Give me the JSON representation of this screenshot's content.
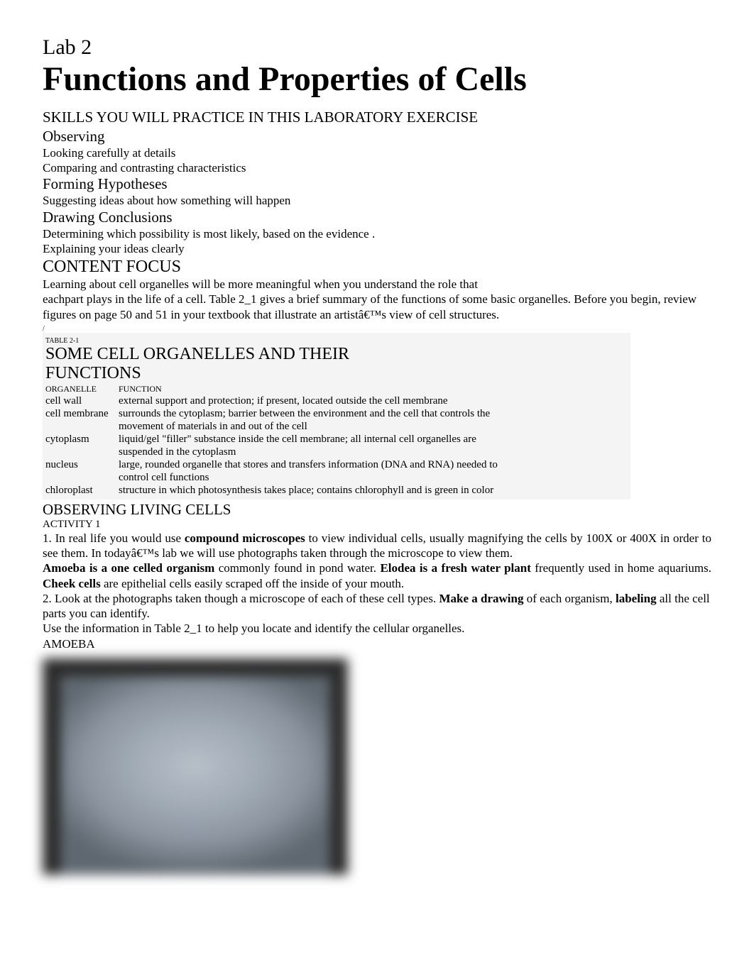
{
  "lab_num": "Lab 2",
  "main_title": "Functions and Properties of Cells",
  "skills_header": "SKILLS YOU WILL PRACTICE IN THIS LABORATORY EXERCISE",
  "skills": [
    {
      "name": "Observing",
      "lines": [
        "Looking carefully at details",
        "Comparing and contrasting characteristics"
      ]
    },
    {
      "name": "Forming Hypotheses",
      "lines": [
        "Suggesting ideas about how something will happen"
      ]
    },
    {
      "name": "Drawing Conclusions",
      "lines": [
        "Determining which possibility is most likely, based on the evidence .",
        "Explaining your ideas clearly"
      ]
    }
  ],
  "content_focus_hdr": "CONTENT FOCUS",
  "content_focus_lines": [
    "Learning about cell organelles will be more meaningful when you understand the role that",
    "eachpart plays in the life of a cell. Table 2_1 gives a brief summary of the functions of some basic organelles. Before you begin, review figures on page 50 and 51 in your textbook that illustrate an artistâ€™s view of cell structures."
  ],
  "slash": "/",
  "table": {
    "caption": "TABLE 2-1",
    "title_l1": "SOME CELL ORGANELLES AND THEIR",
    "title_l2": "FUNCTIONS",
    "headers": {
      "c1": "ORGANELLE",
      "c2": "FUNCTION"
    },
    "rows": [
      {
        "organelle": "cell wall",
        "fn": [
          "external support and protection; if present, located outside the cell membrane"
        ]
      },
      {
        "organelle": "cell membrane",
        "fn": [
          "surrounds the cytoplasm; barrier between the environment and the cell that controls the",
          "movement of materials in and out of the cell"
        ]
      },
      {
        "organelle": "cytoplasm",
        "fn": [
          "liquid/gel \"filler\" substance inside the cell membrane; all internal cell organelles are",
          "suspended in the cytoplasm"
        ]
      },
      {
        "organelle": "nucleus",
        "fn": [
          "large, rounded organelle that stores and transfers information (DNA and RNA) needed to",
          "control cell functions"
        ]
      },
      {
        "organelle": "chloroplast",
        "fn": [
          "structure in which photosynthesis takes place; contains chlorophyll and is green in color"
        ]
      }
    ]
  },
  "observing_hdr": "OBSERVING LIVING CELLS",
  "activity_label": "ACTIVITY 1",
  "activity_paras": [
    {
      "segments": [
        {
          "t": "1.    In real life you would use ",
          "b": false
        },
        {
          "t": "compound microscopes",
          "b": true
        },
        {
          "t": " to view individual cells, usually magnifying the cells by 100X or 400X in order to see them. In todayâ€™s lab we will use photographs taken through the microscope to view them.",
          "b": false
        }
      ],
      "justify": true
    },
    {
      "segments": [
        {
          "t": "Amoeba is a one celled organism",
          "b": true
        },
        {
          "t": " commonly found in pond water. ",
          "b": false
        },
        {
          "t": "Elodea is a fresh water plant",
          "b": true
        },
        {
          "t": " frequently used in home aquariums. ",
          "b": false
        },
        {
          "t": "Cheek cells",
          "b": true
        },
        {
          "t": " are epithelial cells easily scraped off the inside of your mouth.",
          "b": false
        }
      ],
      "justify": true
    },
    {
      "segments": [
        {
          "t": "2. Look at the photographs taken though a microscope of each of these cell types. ",
          "b": false
        },
        {
          "t": "Make a drawing",
          "b": true
        },
        {
          "t": " of each organism, ",
          "b": false
        },
        {
          "t": "labeling",
          "b": true
        },
        {
          "t": " all the cell parts you can identify.",
          "b": false
        }
      ],
      "justify": false
    },
    {
      "segments": [
        {
          "t": "Use the information in Table 2_1 to help you locate and identify the cellular organelles.",
          "b": false
        }
      ],
      "justify": false
    }
  ],
  "amoeba_label": "AMOEBA",
  "colors": {
    "background": "#ffffff",
    "text": "#000000",
    "table_bg": "#f4f4f4",
    "image_frame": "#2a2a2a",
    "image_fill_light": "#b8c0c9",
    "image_fill_dark": "#5f6870"
  },
  "fonts": {
    "family": "Times New Roman",
    "lab_num_size": 30,
    "main_title_size": 48,
    "section_size": 21,
    "body_size": 17,
    "table_body_size": 15,
    "tiny_size": 10
  }
}
